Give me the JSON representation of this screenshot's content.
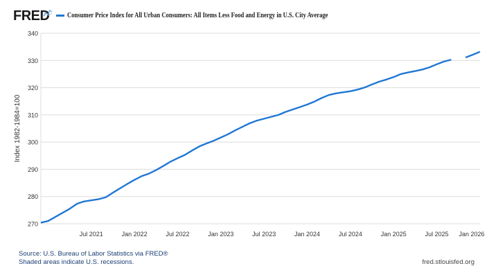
{
  "header": {
    "logo": "FRED",
    "logo_mark_icon": "fred-chart-line-icon"
  },
  "chart_data": {
    "type": "line",
    "title": "",
    "legend": {
      "placement": "top-left",
      "entries": [
        "Consumer Price Index for All Urban Consumers: All Items Less Food and Energy in U.S. City Average"
      ]
    },
    "ylabel": "Index 1982-1984=100",
    "xlabel": "",
    "ylim": [
      270,
      340
    ],
    "yticks": [
      270,
      280,
      290,
      300,
      310,
      320,
      330,
      340
    ],
    "xlim": [
      "2020-12",
      "2026-01"
    ],
    "xticks": [
      {
        "date": "2021-07",
        "label": "Jul 2021"
      },
      {
        "date": "2022-01",
        "label": "Jan 2022"
      },
      {
        "date": "2022-07",
        "label": "Jul 2022"
      },
      {
        "date": "2023-01",
        "label": "Jan 2023"
      },
      {
        "date": "2023-07",
        "label": "Jul 2023"
      },
      {
        "date": "2024-01",
        "label": "Jan 2024"
      },
      {
        "date": "2024-07",
        "label": "Jul 2024"
      },
      {
        "date": "2025-01",
        "label": "Jan 2025"
      },
      {
        "date": "2025-07",
        "label": "Jul 2025"
      },
      {
        "date": "2026-01",
        "label": "Jan 2026"
      }
    ],
    "grid": "horizontal",
    "series": [
      {
        "name": "Consumer Price Index for All Urban Consumers: All Items Less Food and Energy in U.S. City Average",
        "color": "#1f77d4",
        "x": [
          "2020-12",
          "2021-01",
          "2021-02",
          "2021-03",
          "2021-04",
          "2021-05",
          "2021-06",
          "2021-07",
          "2021-08",
          "2021-09",
          "2021-10",
          "2021-11",
          "2021-12",
          "2022-01",
          "2022-02",
          "2022-03",
          "2022-04",
          "2022-05",
          "2022-06",
          "2022-07",
          "2022-08",
          "2022-09",
          "2022-10",
          "2022-11",
          "2022-12",
          "2023-01",
          "2023-02",
          "2023-03",
          "2023-04",
          "2023-05",
          "2023-06",
          "2023-07",
          "2023-08",
          "2023-09",
          "2023-10",
          "2023-11",
          "2023-12",
          "2024-01",
          "2024-02",
          "2024-03",
          "2024-04",
          "2024-05",
          "2024-06",
          "2024-07",
          "2024-08",
          "2024-09",
          "2024-10",
          "2024-11",
          "2024-12",
          "2025-01",
          "2025-02",
          "2025-03",
          "2025-04",
          "2025-05",
          "2025-06",
          "2025-07",
          "2025-08",
          "2025-09",
          "2025-10",
          "2025-11",
          "2025-12",
          "2026-01"
        ],
        "values": [
          270.4,
          271.0,
          272.5,
          274.0,
          275.5,
          277.3,
          278.2,
          278.6,
          279.0,
          279.7,
          281.4,
          283.0,
          284.6,
          286.1,
          287.5,
          288.4,
          289.7,
          291.2,
          292.8,
          294.1,
          295.3,
          296.9,
          298.4,
          299.5,
          300.5,
          301.7,
          302.9,
          304.3,
          305.6,
          306.9,
          307.9,
          308.6,
          309.3,
          310.0,
          311.1,
          312.0,
          312.9,
          313.8,
          314.9,
          316.2,
          317.3,
          317.9,
          318.3,
          318.7,
          319.3,
          320.1,
          321.2,
          322.2,
          323.0,
          323.9,
          325.0,
          325.6,
          326.1,
          326.7,
          327.5,
          328.6,
          329.6,
          330.3,
          null,
          331.1,
          332.1,
          333.2
        ]
      }
    ]
  },
  "footer": {
    "source": "Source: U.S. Bureau of Labor Statistics via FRED®",
    "recession_note": "Shaded areas indicate U.S. recessions.",
    "site": "fred.stlouisfed.org"
  }
}
